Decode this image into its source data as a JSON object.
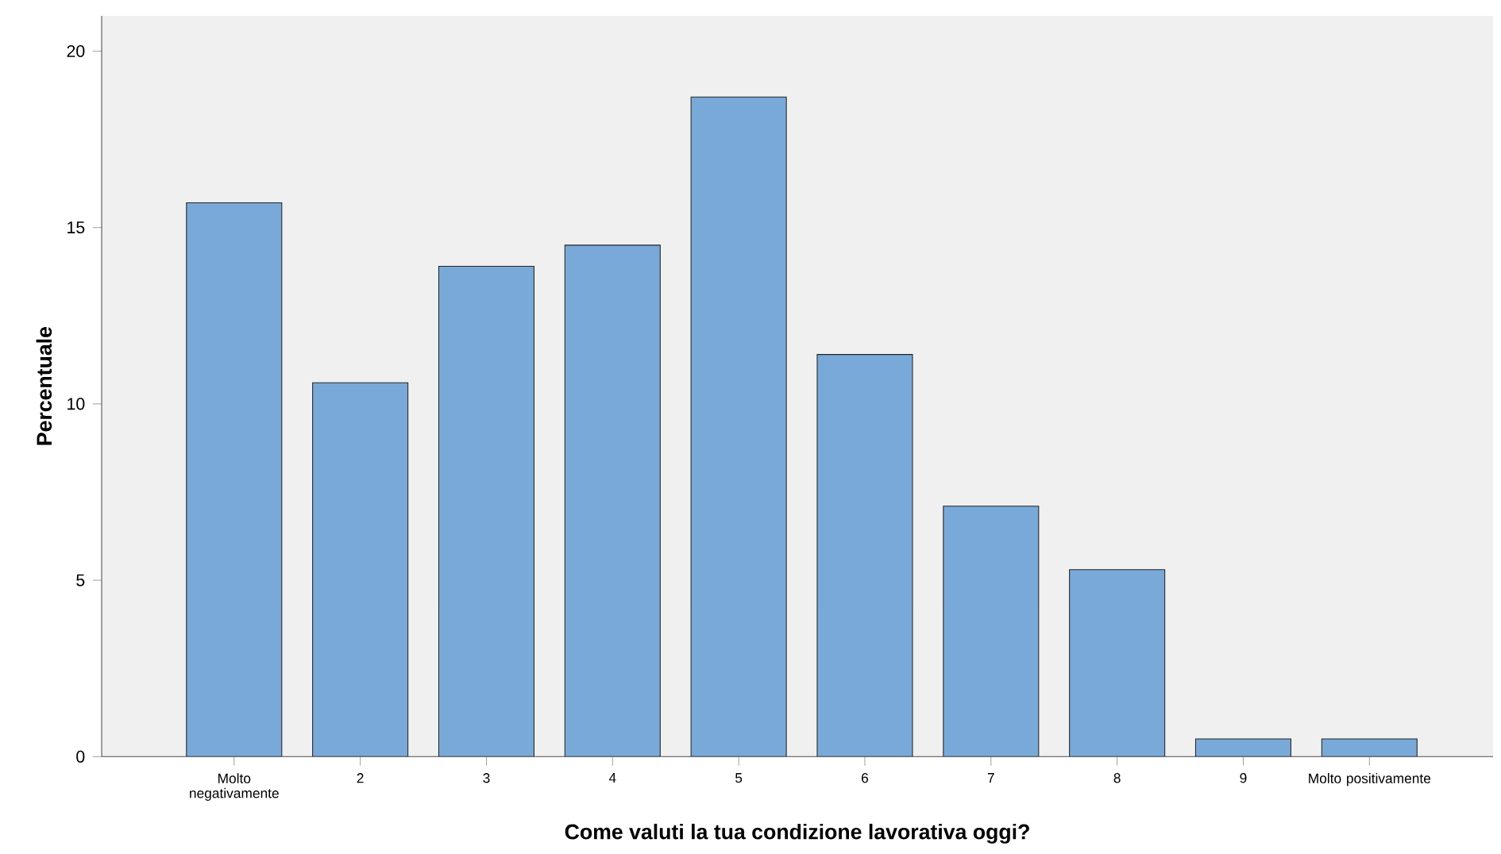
{
  "chart_data": {
    "type": "bar",
    "xlabel": "Come valuti la tua condizione lavorativa oggi?",
    "ylabel": "Percentuale",
    "categories": [
      "Molto negativamente",
      "2",
      "3",
      "4",
      "5",
      "6",
      "7",
      "8",
      "9",
      "Molto positivamente"
    ],
    "values": [
      15.7,
      10.6,
      13.9,
      14.5,
      18.7,
      11.4,
      7.1,
      5.3,
      0.5,
      0.5
    ],
    "color": "#79a9d8",
    "ylim": [
      0,
      21
    ],
    "yticks": [
      0,
      5,
      10,
      15,
      20
    ]
  }
}
